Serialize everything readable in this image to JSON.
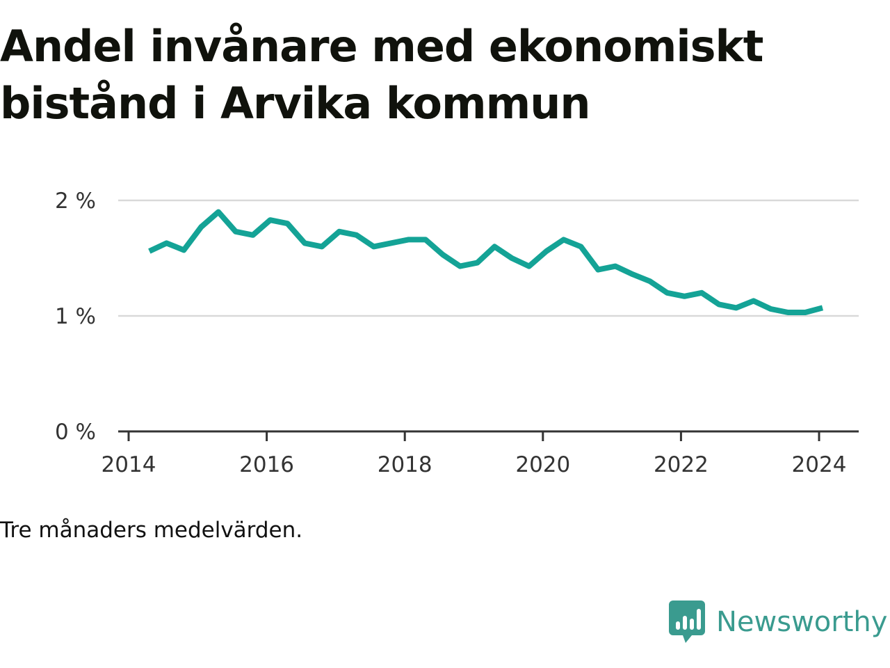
{
  "title": "Andel invånare med ekonomiskt bistånd i Arvika kommun",
  "note": "Tre månaders medelvärden.",
  "brand": {
    "name": "Newsworthy",
    "icon": "newsworthy-logo-icon",
    "color": "#3a9b8f"
  },
  "chart_data": {
    "type": "line",
    "title": "Andel invånare med ekonomiskt bistånd i Arvika kommun",
    "xlabel": "",
    "ylabel": "",
    "x_ticks": [
      "2014",
      "2016",
      "2018",
      "2020",
      "2022",
      "2024"
    ],
    "y_ticks": [
      "0 %",
      "1 %",
      "2 %"
    ],
    "ylim": [
      0,
      2.2
    ],
    "xlim": [
      2013.9,
      2024.6
    ],
    "grid": true,
    "line_color": "#14a396",
    "series": [
      {
        "name": "",
        "x": [
          2014.3,
          2014.55,
          2014.8,
          2015.05,
          2015.3,
          2015.55,
          2015.8,
          2016.05,
          2016.3,
          2016.55,
          2016.8,
          2017.05,
          2017.3,
          2017.55,
          2017.8,
          2018.05,
          2018.3,
          2018.55,
          2018.8,
          2019.05,
          2019.3,
          2019.55,
          2019.8,
          2020.05,
          2020.3,
          2020.55,
          2020.8,
          2021.05,
          2021.3,
          2021.55,
          2021.8,
          2022.05,
          2022.3,
          2022.55,
          2022.8,
          2023.05,
          2023.3,
          2023.55,
          2023.8,
          2024.05
        ],
        "values": [
          1.56,
          1.63,
          1.57,
          1.77,
          1.9,
          1.73,
          1.7,
          1.83,
          1.8,
          1.63,
          1.6,
          1.73,
          1.7,
          1.6,
          1.63,
          1.66,
          1.66,
          1.53,
          1.43,
          1.46,
          1.6,
          1.5,
          1.43,
          1.56,
          1.66,
          1.6,
          1.4,
          1.43,
          1.36,
          1.3,
          1.2,
          1.17,
          1.2,
          1.1,
          1.07,
          1.13,
          1.06,
          1.03,
          1.03,
          1.07
        ]
      }
    ]
  }
}
